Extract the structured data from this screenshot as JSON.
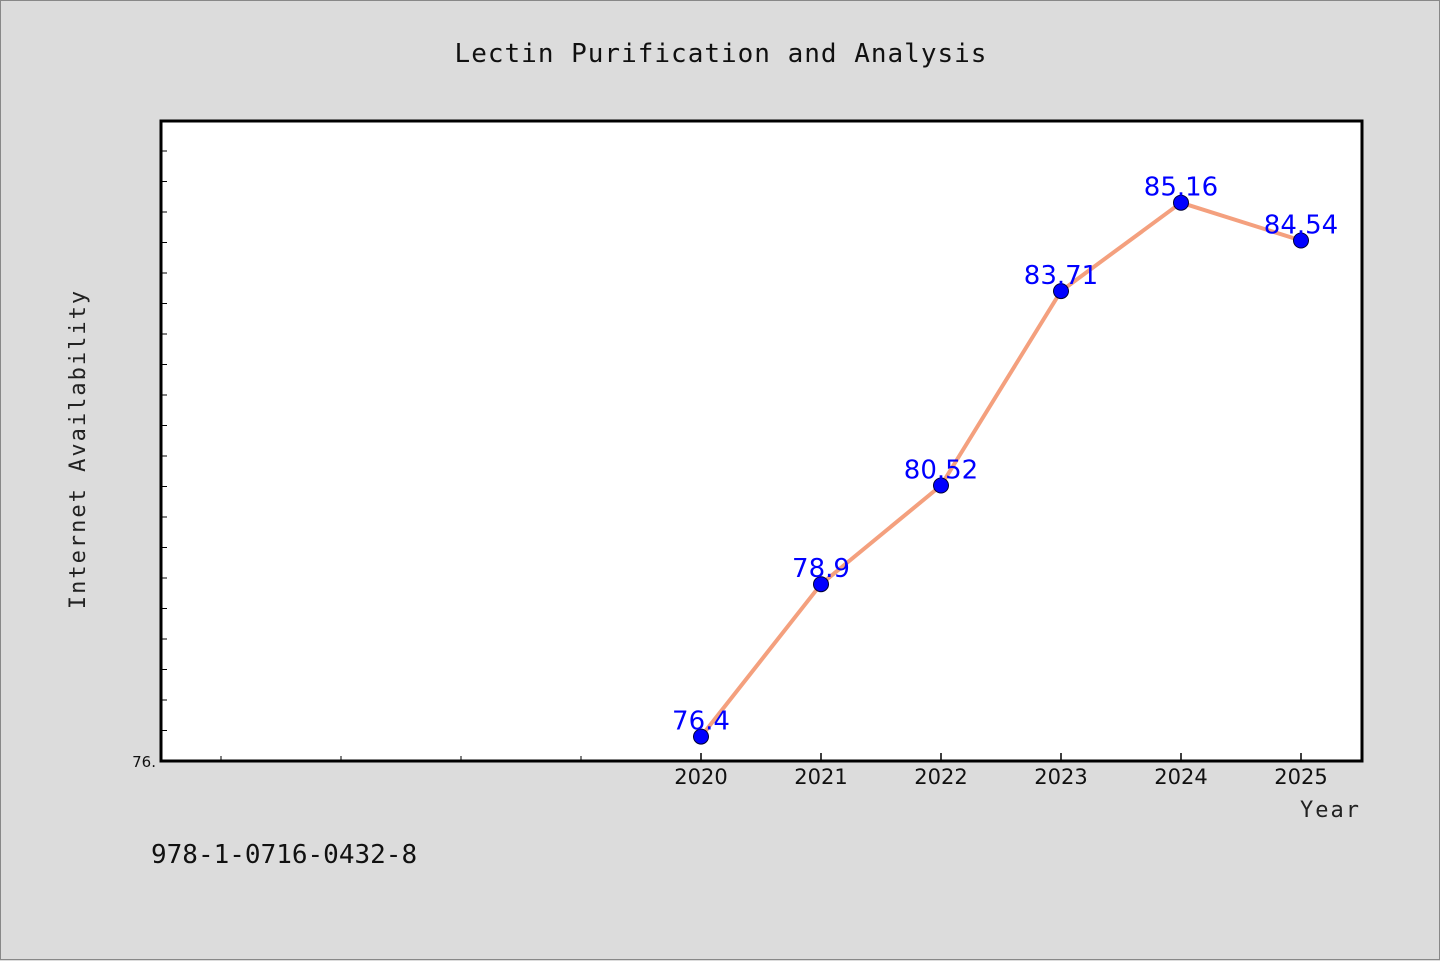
{
  "chart_data": {
    "type": "line",
    "title": "Lectin Purification and Analysis",
    "xlabel": "Year",
    "ylabel": "Internet Availability",
    "x": [
      "2020",
      "2021",
      "2022",
      "2023",
      "2024",
      "2025"
    ],
    "values": [
      76.4,
      78.9,
      80.52,
      83.71,
      85.16,
      84.54
    ],
    "data_labels": [
      "76.4",
      "78.9",
      "80.52",
      "83.71",
      "85.16",
      "84.54"
    ],
    "ymin_label": "76.",
    "ylim": [
      76.0,
      86.5
    ],
    "grid": false,
    "legend": "none",
    "line_color": "#f4a07e",
    "marker_color": "#0000ff",
    "label_color": "#0000ff"
  },
  "footer": {
    "isbn": "978-1-0716-0432-8"
  }
}
